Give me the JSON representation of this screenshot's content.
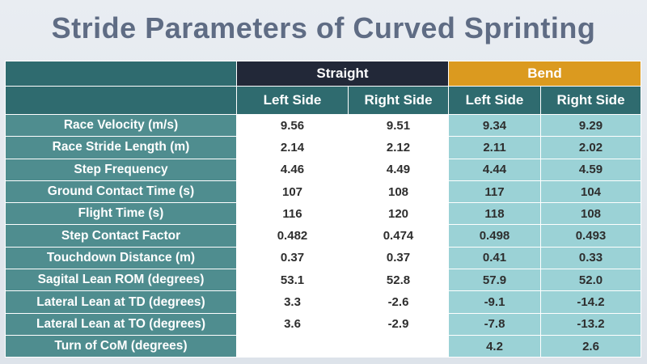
{
  "title": "Stride Parameters of Curved Sprinting",
  "groups": {
    "straight": "Straight",
    "bend": "Bend"
  },
  "subheaders": [
    "Left Side",
    "Right Side",
    "Left Side",
    "Right Side"
  ],
  "colors": {
    "title": "#5f6c84",
    "teal_header": "#2f6b6f",
    "row_label": "#4f8d8f",
    "straight_header": "#222838",
    "bend_header": "#db9a1f",
    "bend_cells": "#9bd2d6"
  },
  "rows": [
    {
      "label": "Race Velocity (m/s)",
      "values": [
        "9.56",
        "9.51",
        "9.34",
        "9.29"
      ]
    },
    {
      "label": "Race Stride Length (m)",
      "values": [
        "2.14",
        "2.12",
        "2.11",
        "2.02"
      ]
    },
    {
      "label": "Step Frequency",
      "values": [
        "4.46",
        "4.49",
        "4.44",
        "4.59"
      ]
    },
    {
      "label": "Ground Contact Time (s)",
      "values": [
        "107",
        "108",
        "117",
        "104"
      ]
    },
    {
      "label": "Flight Time (s)",
      "values": [
        "116",
        "120",
        "118",
        "108"
      ]
    },
    {
      "label": "Step Contact Factor",
      "values": [
        "0.482",
        "0.474",
        "0.498",
        "0.493"
      ]
    },
    {
      "label": "Touchdown Distance (m)",
      "values": [
        "0.37",
        "0.37",
        "0.41",
        "0.33"
      ]
    },
    {
      "label": "Sagital Lean ROM (degrees)",
      "values": [
        "53.1",
        "52.8",
        "57.9",
        "52.0"
      ]
    },
    {
      "label": "Lateral Lean at TD (degrees)",
      "values": [
        "3.3",
        "-2.6",
        "-9.1",
        "-14.2"
      ]
    },
    {
      "label": "Lateral Lean at TO (degrees)",
      "values": [
        "3.6",
        "-2.9",
        "-7.8",
        "-13.2"
      ]
    },
    {
      "label": "Turn of CoM (degrees)",
      "values": [
        "",
        "",
        "4.2",
        "2.6"
      ]
    }
  ]
}
